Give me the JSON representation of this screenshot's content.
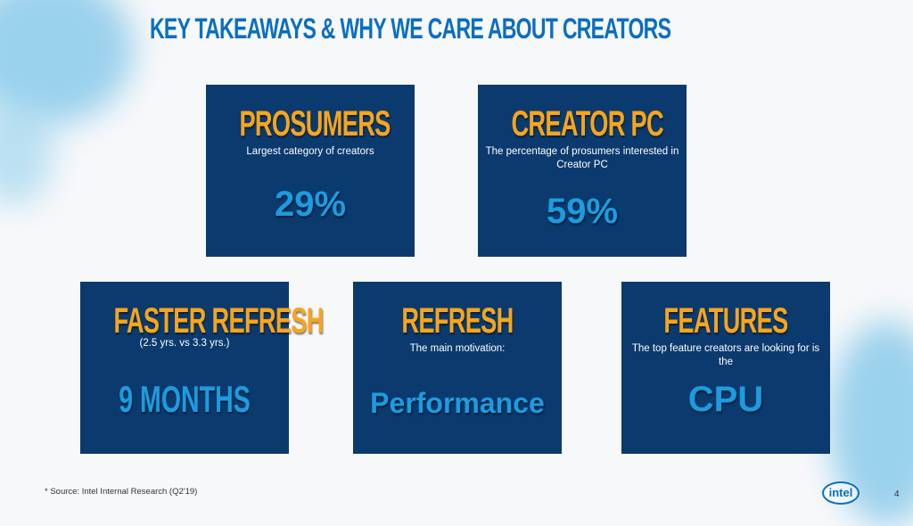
{
  "title": "KEY TAKEAWAYS & WHY WE CARE ABOUT CREATORS",
  "cards": [
    {
      "heading": "PROSUMERS",
      "sub": "Largest category of creators",
      "value": "29%"
    },
    {
      "heading": "CREATOR PC",
      "sub": "The percentage of prosumers interested in Creator PC",
      "value": "59%"
    },
    {
      "heading": "FASTER REFRESH",
      "sub": "(2.5 yrs. vs 3.3 yrs.)",
      "value": "9 MONTHS"
    },
    {
      "heading": "REFRESH",
      "sub": "The main motivation:",
      "value": "Performance"
    },
    {
      "heading": "FEATURES",
      "sub": "The top feature creators are looking for is the",
      "value": "CPU"
    }
  ],
  "source": "* Source: Intel Internal Research (Q2'19)",
  "logo": "intel",
  "page_number": "4",
  "colors": {
    "card": "#0b3a6e",
    "heading": "#f6a51c",
    "value": "#1c9ce0",
    "title": "#0a6fc2"
  }
}
